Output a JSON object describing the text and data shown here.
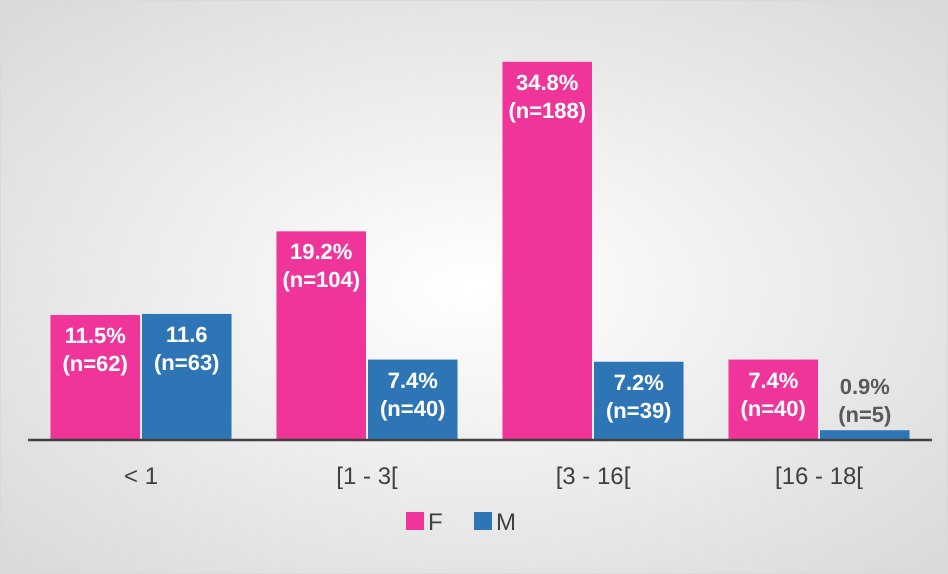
{
  "chart_data": {
    "type": "bar",
    "categories": [
      "< 1",
      "[1 - 3[",
      "[3 - 16[",
      "[16 - 18["
    ],
    "series": [
      {
        "name": "F",
        "color": "#f0359a",
        "values": [
          11.5,
          19.2,
          34.8,
          7.4
        ],
        "value_labels": [
          "11.5%\n(n=62)",
          "19.2%\n(n=104)",
          "34.8%\n(n=188)",
          "7.4%\n(n=40)"
        ]
      },
      {
        "name": "M",
        "color": "#2e75b6",
        "values": [
          11.6,
          7.4,
          7.2,
          0.9
        ],
        "value_labels": [
          "11.6\n(n=63)",
          "7.4%\n(n=40)",
          "7.2%\n(n=39)",
          "0.9%\n(n=5)"
        ]
      }
    ],
    "legend": "bottom",
    "grid": false
  }
}
